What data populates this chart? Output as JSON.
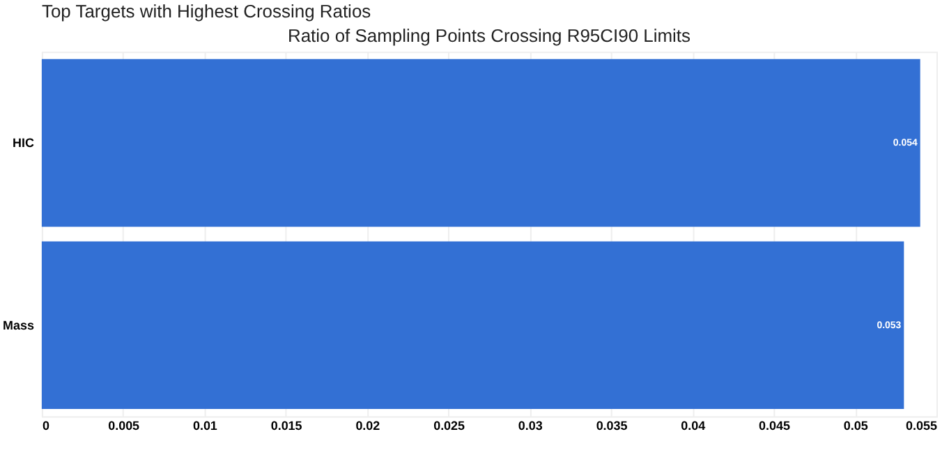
{
  "chart_data": {
    "type": "bar",
    "orientation": "horizontal",
    "title": "Top Targets with Highest Crossing Ratios",
    "subtitle": "Ratio of Sampling Points Crossing R95CI90 Limits",
    "categories": [
      "HIC",
      "Mass"
    ],
    "values": [
      0.054,
      0.053
    ],
    "color": "#3370d4",
    "xlim": [
      0,
      0.055
    ],
    "xticks": [
      0,
      0.005,
      0.01,
      0.015,
      0.02,
      0.025,
      0.03,
      0.035,
      0.04,
      0.045,
      0.05,
      0.055
    ],
    "grid": "x",
    "data_labels": true
  }
}
